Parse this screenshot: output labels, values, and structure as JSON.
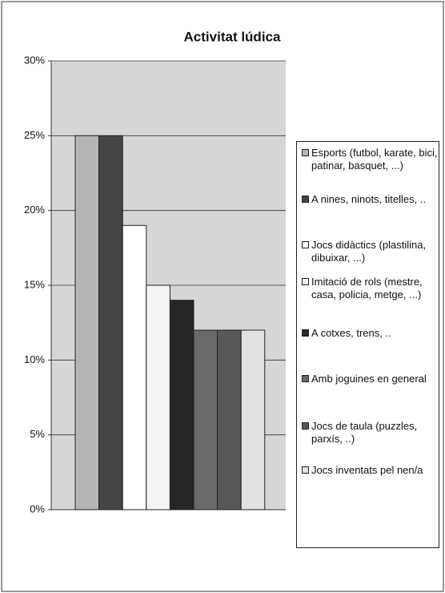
{
  "chart_data": {
    "type": "bar",
    "title": "Activitat lúdica",
    "categories": [
      null
    ],
    "series": [
      {
        "name": "Esports (futbol, karate, bici, patinar, basquet, ...)",
        "color": "#b5b5b5",
        "values": [
          25
        ]
      },
      {
        "name": "A nines, ninots, titelles, ..",
        "color": "#454545",
        "values": [
          25
        ]
      },
      {
        "name": "Jocs didàctics (plastilina, dibuixar, ...)",
        "color": "#ffffff",
        "values": [
          19
        ]
      },
      {
        "name": "Imitació de rols (mestre, casa, policia, metge, ...)",
        "color": "#f4f4f4",
        "values": [
          15
        ]
      },
      {
        "name": "A cotxes, trens, ..",
        "color": "#262626",
        "values": [
          14
        ]
      },
      {
        "name": "Amb joguines en general",
        "color": "#6a6a6a",
        "values": [
          12
        ]
      },
      {
        "name": "Jocs de taula (puzzles, parxís, ..)",
        "color": "#585858",
        "values": [
          12
        ]
      },
      {
        "name": "Jocs inventats pel nen/a",
        "color": "#e2e2e2",
        "values": [
          12
        ]
      }
    ],
    "ylim": [
      0,
      30
    ],
    "yticks": [
      {
        "value": 0,
        "label": "0%"
      },
      {
        "value": 5,
        "label": "5%"
      },
      {
        "value": 10,
        "label": "10%"
      },
      {
        "value": 15,
        "label": "15%"
      },
      {
        "value": 20,
        "label": "20%"
      },
      {
        "value": 25,
        "label": "25%"
      },
      {
        "value": 30,
        "label": "30%"
      }
    ],
    "grid": true,
    "legend": "right"
  }
}
